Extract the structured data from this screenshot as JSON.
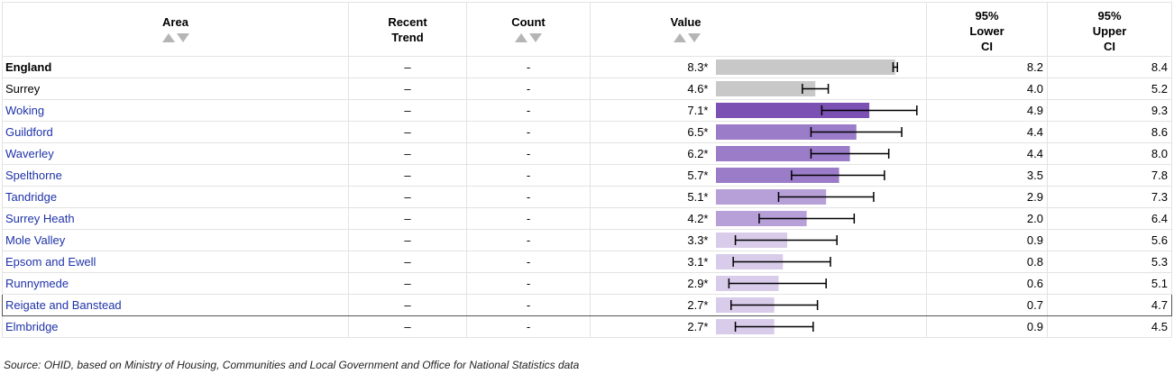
{
  "headers": {
    "area": "Area",
    "trend": [
      "Recent",
      "Trend"
    ],
    "count": "Count",
    "value": "Value",
    "lower": [
      "95%",
      "Lower",
      "CI"
    ],
    "upper": [
      "95%",
      "Upper",
      "CI"
    ]
  },
  "sort_icons": [
    "sort-ascending-icon",
    "sort-descending-icon"
  ],
  "colors": {
    "benchmark_grey": "#c8c8c8",
    "shade_1": "#7b52b3",
    "shade_2": "#9b7cc9",
    "shade_3": "#b7a0d8",
    "shade_4": "#d8ccea",
    "link": "#1f33a8"
  },
  "rows": [
    {
      "area": "England",
      "trend": "–",
      "count": "-",
      "value": 8.3,
      "value_label": "8.3*",
      "lower": "8.2",
      "upper": "8.4",
      "lower_n": 8.2,
      "upper_n": 8.4,
      "color": "#c8c8c8",
      "type": "bold"
    },
    {
      "area": "Surrey",
      "trend": "–",
      "count": "-",
      "value": 4.6,
      "value_label": "4.6*",
      "lower": "4.0",
      "upper": "5.2",
      "lower_n": 4.0,
      "upper_n": 5.2,
      "color": "#c8c8c8",
      "type": "plain"
    },
    {
      "area": "Woking",
      "trend": "–",
      "count": "-",
      "value": 7.1,
      "value_label": "7.1*",
      "lower": "4.9",
      "upper": "9.3",
      "lower_n": 4.9,
      "upper_n": 9.3,
      "color": "#7b52b3",
      "type": "link"
    },
    {
      "area": "Guildford",
      "trend": "–",
      "count": "-",
      "value": 6.5,
      "value_label": "6.5*",
      "lower": "4.4",
      "upper": "8.6",
      "lower_n": 4.4,
      "upper_n": 8.6,
      "color": "#9b7cc9",
      "type": "link"
    },
    {
      "area": "Waverley",
      "trend": "–",
      "count": "-",
      "value": 6.2,
      "value_label": "6.2*",
      "lower": "4.4",
      "upper": "8.0",
      "lower_n": 4.4,
      "upper_n": 8.0,
      "color": "#9b7cc9",
      "type": "link"
    },
    {
      "area": "Spelthorne",
      "trend": "–",
      "count": "-",
      "value": 5.7,
      "value_label": "5.7*",
      "lower": "3.5",
      "upper": "7.8",
      "lower_n": 3.5,
      "upper_n": 7.8,
      "color": "#9b7cc9",
      "type": "link"
    },
    {
      "area": "Tandridge",
      "trend": "–",
      "count": "-",
      "value": 5.1,
      "value_label": "5.1*",
      "lower": "2.9",
      "upper": "7.3",
      "lower_n": 2.9,
      "upper_n": 7.3,
      "color": "#b7a0d8",
      "type": "link"
    },
    {
      "area": "Surrey Heath",
      "trend": "–",
      "count": "-",
      "value": 4.2,
      "value_label": "4.2*",
      "lower": "2.0",
      "upper": "6.4",
      "lower_n": 2.0,
      "upper_n": 6.4,
      "color": "#b7a0d8",
      "type": "link"
    },
    {
      "area": "Mole Valley",
      "trend": "–",
      "count": "-",
      "value": 3.3,
      "value_label": "3.3*",
      "lower": "0.9",
      "upper": "5.6",
      "lower_n": 0.9,
      "upper_n": 5.6,
      "color": "#d8ccea",
      "type": "link"
    },
    {
      "area": "Epsom and Ewell",
      "trend": "–",
      "count": "-",
      "value": 3.1,
      "value_label": "3.1*",
      "lower": "0.8",
      "upper": "5.3",
      "lower_n": 0.8,
      "upper_n": 5.3,
      "color": "#d8ccea",
      "type": "link"
    },
    {
      "area": "Runnymede",
      "trend": "–",
      "count": "-",
      "value": 2.9,
      "value_label": "2.9*",
      "lower": "0.6",
      "upper": "5.1",
      "lower_n": 0.6,
      "upper_n": 5.1,
      "color": "#d8ccea",
      "type": "link"
    },
    {
      "area": "Reigate and Banstead",
      "trend": "–",
      "count": "-",
      "value": 2.7,
      "value_label": "2.7*",
      "lower": "0.7",
      "upper": "4.7",
      "lower_n": 0.7,
      "upper_n": 4.7,
      "color": "#d8ccea",
      "type": "link",
      "highlight": true
    },
    {
      "area": "Elmbridge",
      "trend": "–",
      "count": "-",
      "value": 2.7,
      "value_label": "2.7*",
      "lower": "0.9",
      "upper": "4.5",
      "lower_n": 0.9,
      "upper_n": 4.5,
      "color": "#d8ccea",
      "type": "link"
    }
  ],
  "chart_data": {
    "type": "bar",
    "categories": [
      "England",
      "Surrey",
      "Woking",
      "Guildford",
      "Waverley",
      "Spelthorne",
      "Tandridge",
      "Surrey Heath",
      "Mole Valley",
      "Epsom and Ewell",
      "Runnymede",
      "Reigate and Banstead",
      "Elmbridge"
    ],
    "values": [
      8.3,
      4.6,
      7.1,
      6.5,
      6.2,
      5.7,
      5.1,
      4.2,
      3.3,
      3.1,
      2.9,
      2.7,
      2.7
    ],
    "lower_ci": [
      8.2,
      4.0,
      4.9,
      4.4,
      4.4,
      3.5,
      2.9,
      2.0,
      0.9,
      0.8,
      0.6,
      0.7,
      0.9
    ],
    "upper_ci": [
      8.4,
      5.2,
      9.3,
      8.6,
      8.0,
      7.8,
      7.3,
      6.4,
      5.6,
      5.3,
      5.1,
      4.7,
      4.5
    ],
    "xlim": [
      0,
      9.6
    ],
    "grid": false
  },
  "footer": {
    "source": "Source: OHID, based on Ministry of Housing, Communities and Local Government and Office for National Statistics data"
  }
}
